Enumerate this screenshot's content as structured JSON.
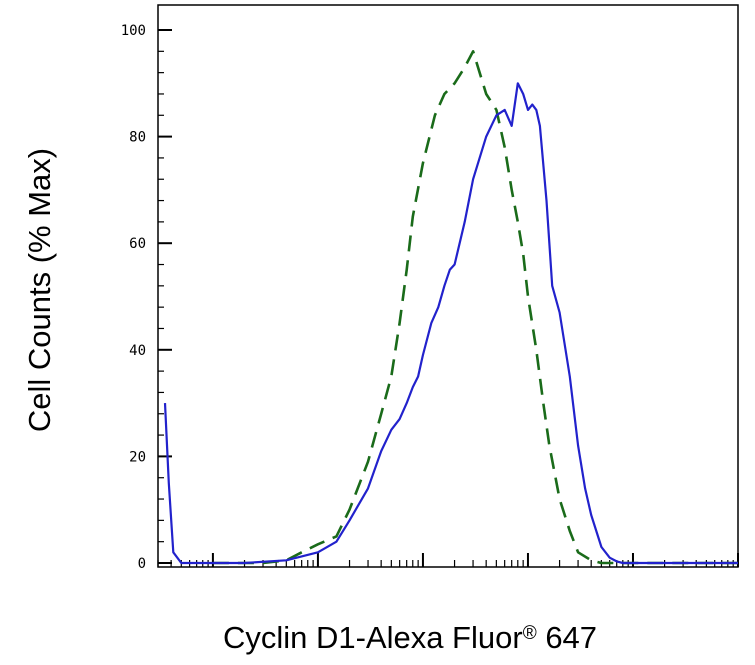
{
  "chart_data": {
    "type": "line",
    "title": "",
    "xlabel": "Cyclin D1-Alexa Fluor",
    "xlabel_sup": "®",
    "xlabel_suffix": " 647",
    "ylabel": "Cell Counts (% Max)",
    "xscale": "log",
    "xlim": [
      0.3,
      100000
    ],
    "ylim": [
      0,
      100
    ],
    "yticks": [
      "0",
      "20",
      "40",
      "60",
      "80",
      "100"
    ],
    "legend": "none",
    "series": [
      {
        "style": "dashed",
        "color": "#1a6b1a",
        "x": [
          1,
          2,
          3,
          5,
          7,
          10,
          15,
          20,
          30,
          40,
          50,
          60,
          70,
          80,
          100,
          130,
          160,
          200,
          250,
          300,
          400,
          500,
          600,
          700,
          800,
          900,
          1000,
          1200,
          1400,
          1600,
          2000,
          2500,
          3000,
          4000,
          5000,
          6000,
          7000,
          8000,
          10000,
          15000,
          20000,
          50000,
          100000
        ],
        "y": [
          0,
          0,
          0,
          0.5,
          2,
          3.5,
          5,
          10,
          19,
          28,
          35,
          45,
          55,
          65,
          75,
          84,
          88,
          90,
          93,
          96,
          88,
          85,
          78,
          70,
          64,
          58,
          50,
          40,
          30,
          22,
          12,
          6,
          2,
          0.5,
          0,
          0,
          0,
          0,
          0,
          0,
          0,
          0,
          0
        ]
      },
      {
        "style": "solid",
        "color": "#2222cc",
        "x": [
          0.35,
          0.38,
          0.42,
          0.5,
          1,
          2,
          5,
          10,
          15,
          20,
          30,
          40,
          50,
          60,
          70,
          80,
          90,
          100,
          120,
          140,
          160,
          180,
          200,
          250,
          300,
          400,
          500,
          600,
          700,
          800,
          900,
          1000,
          1100,
          1200,
          1300,
          1500,
          1700,
          2000,
          2500,
          3000,
          3500,
          4000,
          5000,
          6000,
          7000,
          8000,
          10000,
          12000,
          15000,
          20000,
          50000,
          100000
        ],
        "y": [
          30,
          15,
          2,
          0,
          0,
          0,
          0.5,
          2,
          4,
          8,
          14,
          21,
          25,
          27,
          30,
          33,
          35,
          39,
          45,
          48,
          52,
          55,
          56,
          64,
          72,
          80,
          84,
          85,
          82,
          90,
          88,
          85,
          86,
          85,
          82,
          68,
          52,
          47,
          35,
          22,
          14,
          9,
          3,
          1,
          0.3,
          0,
          0,
          0,
          0,
          0,
          0,
          0
        ]
      }
    ]
  }
}
